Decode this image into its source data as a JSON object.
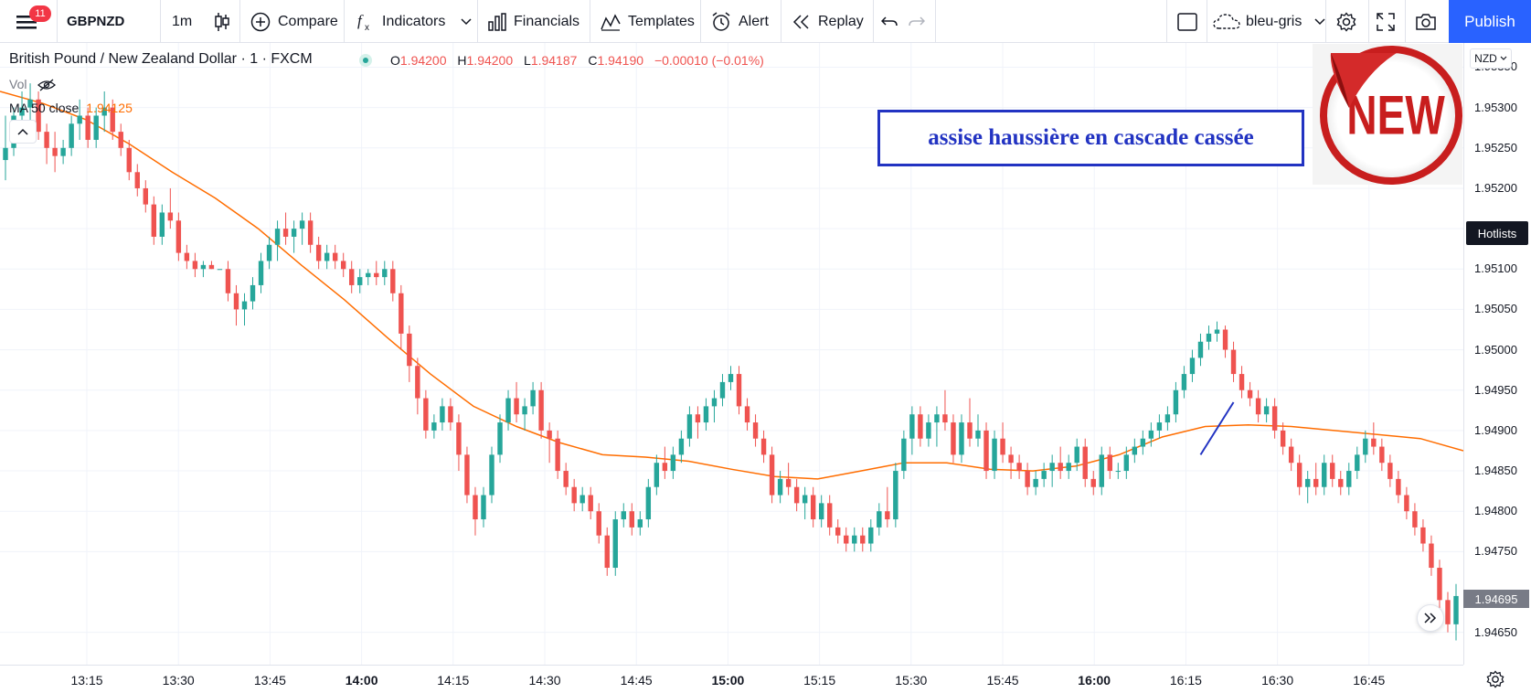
{
  "toolbar": {
    "menu_badge": "11",
    "symbol": "GBPNZD",
    "interval": "1m",
    "compare": "Compare",
    "indicators": "Indicators",
    "financials": "Financials",
    "templates": "Templates",
    "alert": "Alert",
    "replay": "Replay",
    "layout_name": "bleu-gris",
    "publish": "Publish"
  },
  "legend": {
    "title": "British Pound / New Zealand Dollar · 1 · FXCM",
    "o_key": "O",
    "o_val": "1.94200",
    "h_key": "H",
    "h_val": "1.94200",
    "l_key": "L",
    "l_val": "1.94187",
    "c_key": "C",
    "c_val": "1.94190",
    "change": "−0.00010 (−0.01%)",
    "vol": "Vol",
    "ma_label": "MA 50 close",
    "ma_value": "1.94125"
  },
  "annotation": "assise haussière en cascade cassée",
  "sticker_text": "NEW",
  "price_axis": {
    "currency": "NZD",
    "hotlists": "Hotlists",
    "last_price": "1.94695",
    "ticks": [
      "1.95350",
      "1.95300",
      "1.95250",
      "1.95200",
      "1.95150",
      "1.95100",
      "1.95050",
      "1.95000",
      "1.94950",
      "1.94900",
      "1.94850",
      "1.94800",
      "1.94750",
      "1.94650"
    ]
  },
  "colors": {
    "up": "#26a69a",
    "down": "#ef5350",
    "ma": "#ff6d00",
    "annotation": "#2233c2",
    "accent": "#2962ff"
  },
  "chart_data": {
    "type": "candlestick",
    "symbol": "GBPNZD",
    "interval": "1",
    "ylim": [
      1.9461,
      1.9538
    ],
    "time_ticks": [
      "13:15",
      "13:30",
      "13:45",
      "14:00",
      "14:15",
      "14:30",
      "14:45",
      "15:00",
      "15:15",
      "15:30",
      "15:45",
      "16:00",
      "16:15",
      "16:30",
      "16:45"
    ],
    "major_time_ticks": [
      "14:00",
      "15:00",
      "16:00"
    ],
    "candles": [
      [
        1.95235,
        1.9529,
        1.9521,
        1.9525
      ],
      [
        1.9525,
        1.953,
        1.9524,
        1.9529
      ],
      [
        1.9529,
        1.9532,
        1.9527,
        1.953
      ],
      [
        1.953,
        1.9533,
        1.9528,
        1.9531
      ],
      [
        1.9531,
        1.9532,
        1.9526,
        1.9527
      ],
      [
        1.9527,
        1.9528,
        1.9523,
        1.9525
      ],
      [
        1.9525,
        1.9527,
        1.9522,
        1.9524
      ],
      [
        1.9524,
        1.9526,
        1.9523,
        1.9525
      ],
      [
        1.9525,
        1.9529,
        1.9524,
        1.9528
      ],
      [
        1.9528,
        1.9531,
        1.9526,
        1.9529
      ],
      [
        1.9529,
        1.953,
        1.9525,
        1.9526
      ],
      [
        1.9526,
        1.953,
        1.9525,
        1.9529
      ],
      [
        1.9529,
        1.9532,
        1.9527,
        1.953
      ],
      [
        1.953,
        1.9531,
        1.9526,
        1.9527
      ],
      [
        1.9527,
        1.9528,
        1.9524,
        1.9525
      ],
      [
        1.9525,
        1.9526,
        1.9521,
        1.9522
      ],
      [
        1.9522,
        1.9523,
        1.9519,
        1.952
      ],
      [
        1.952,
        1.9521,
        1.9517,
        1.9518
      ],
      [
        1.9518,
        1.9519,
        1.9513,
        1.9514
      ],
      [
        1.9514,
        1.9518,
        1.9513,
        1.9517
      ],
      [
        1.9517,
        1.952,
        1.9515,
        1.9516
      ],
      [
        1.9516,
        1.9517,
        1.9511,
        1.9512
      ],
      [
        1.9512,
        1.9513,
        1.951,
        1.9511
      ],
      [
        1.9511,
        1.9512,
        1.9509,
        1.951
      ],
      [
        1.951,
        1.9511,
        1.9509,
        1.95105
      ],
      [
        1.95105,
        1.9511,
        1.951,
        1.951
      ],
      [
        1.951,
        1.951,
        1.951,
        1.951
      ],
      [
        1.951,
        1.9511,
        1.9506,
        1.9507
      ],
      [
        1.9507,
        1.9508,
        1.9503,
        1.9505
      ],
      [
        1.9505,
        1.9507,
        1.9503,
        1.9506
      ],
      [
        1.9506,
        1.9509,
        1.9505,
        1.9508
      ],
      [
        1.9508,
        1.9512,
        1.9507,
        1.9511
      ],
      [
        1.9511,
        1.9514,
        1.951,
        1.9513
      ],
      [
        1.9513,
        1.9516,
        1.9511,
        1.9515
      ],
      [
        1.9515,
        1.9517,
        1.9513,
        1.9514
      ],
      [
        1.9514,
        1.9516,
        1.9512,
        1.9515
      ],
      [
        1.9515,
        1.9517,
        1.9513,
        1.9516
      ],
      [
        1.9516,
        1.9517,
        1.9512,
        1.9513
      ],
      [
        1.9513,
        1.9514,
        1.951,
        1.9511
      ],
      [
        1.9511,
        1.9513,
        1.951,
        1.9512
      ],
      [
        1.9512,
        1.9513,
        1.951,
        1.9511
      ],
      [
        1.9511,
        1.9512,
        1.9509,
        1.951
      ],
      [
        1.951,
        1.9511,
        1.9507,
        1.9508
      ],
      [
        1.9508,
        1.951,
        1.9507,
        1.9509
      ],
      [
        1.9509,
        1.951,
        1.9508,
        1.95095
      ],
      [
        1.95095,
        1.9511,
        1.9508,
        1.9509
      ],
      [
        1.9509,
        1.9511,
        1.9508,
        1.951
      ],
      [
        1.951,
        1.9511,
        1.9506,
        1.9507
      ],
      [
        1.9507,
        1.9508,
        1.95,
        1.9502
      ],
      [
        1.9502,
        1.9503,
        1.9496,
        1.9498
      ],
      [
        1.9498,
        1.9499,
        1.9492,
        1.9494
      ],
      [
        1.9494,
        1.9495,
        1.9489,
        1.949
      ],
      [
        1.949,
        1.9492,
        1.9489,
        1.9491
      ],
      [
        1.9491,
        1.9494,
        1.949,
        1.9493
      ],
      [
        1.9493,
        1.9494,
        1.949,
        1.9491
      ],
      [
        1.9491,
        1.9492,
        1.9485,
        1.9487
      ],
      [
        1.9487,
        1.9488,
        1.9481,
        1.9482
      ],
      [
        1.9482,
        1.9483,
        1.9477,
        1.9479
      ],
      [
        1.9479,
        1.9483,
        1.9478,
        1.9482
      ],
      [
        1.9482,
        1.9488,
        1.9481,
        1.9487
      ],
      [
        1.9487,
        1.9492,
        1.9486,
        1.9491
      ],
      [
        1.9491,
        1.9495,
        1.949,
        1.9494
      ],
      [
        1.9494,
        1.9496,
        1.9491,
        1.9492
      ],
      [
        1.9492,
        1.9494,
        1.949,
        1.9493
      ],
      [
        1.9493,
        1.9496,
        1.9492,
        1.9495
      ],
      [
        1.9495,
        1.9496,
        1.9489,
        1.949
      ],
      [
        1.949,
        1.9491,
        1.9486,
        1.9489
      ],
      [
        1.9489,
        1.949,
        1.9484,
        1.9485
      ],
      [
        1.9485,
        1.9486,
        1.9482,
        1.9483
      ],
      [
        1.9483,
        1.9484,
        1.948,
        1.9481
      ],
      [
        1.9481,
        1.9483,
        1.948,
        1.9482
      ],
      [
        1.9482,
        1.9483,
        1.9479,
        1.948
      ],
      [
        1.948,
        1.9481,
        1.9476,
        1.9477
      ],
      [
        1.9477,
        1.9478,
        1.9472,
        1.9473
      ],
      [
        1.9473,
        1.948,
        1.9472,
        1.9479
      ],
      [
        1.9479,
        1.9481,
        1.9478,
        1.948
      ],
      [
        1.948,
        1.9481,
        1.9477,
        1.9478
      ],
      [
        1.9478,
        1.948,
        1.9477,
        1.9479
      ],
      [
        1.9479,
        1.9484,
        1.9478,
        1.9483
      ],
      [
        1.9483,
        1.9487,
        1.9482,
        1.9486
      ],
      [
        1.9486,
        1.9488,
        1.9484,
        1.9485
      ],
      [
        1.9485,
        1.9488,
        1.9484,
        1.9487
      ],
      [
        1.9487,
        1.949,
        1.9486,
        1.9489
      ],
      [
        1.9489,
        1.9493,
        1.9488,
        1.9492
      ],
      [
        1.9492,
        1.9493,
        1.9489,
        1.9491
      ],
      [
        1.9491,
        1.9494,
        1.949,
        1.9493
      ],
      [
        1.9493,
        1.9495,
        1.9491,
        1.9494
      ],
      [
        1.9494,
        1.9497,
        1.9493,
        1.9496
      ],
      [
        1.9496,
        1.9498,
        1.9495,
        1.9497
      ],
      [
        1.9497,
        1.9498,
        1.9492,
        1.9493
      ],
      [
        1.9493,
        1.9494,
        1.949,
        1.9491
      ],
      [
        1.9491,
        1.9492,
        1.9488,
        1.9489
      ],
      [
        1.9489,
        1.949,
        1.9486,
        1.9487
      ],
      [
        1.9487,
        1.9488,
        1.9481,
        1.9482
      ],
      [
        1.9482,
        1.9485,
        1.9481,
        1.9484
      ],
      [
        1.9484,
        1.9486,
        1.9482,
        1.9483
      ],
      [
        1.9483,
        1.9484,
        1.948,
        1.9481
      ],
      [
        1.9481,
        1.9483,
        1.9479,
        1.9482
      ],
      [
        1.9482,
        1.9483,
        1.9478,
        1.9479
      ],
      [
        1.9479,
        1.9482,
        1.9478,
        1.9481
      ],
      [
        1.9481,
        1.9482,
        1.9477,
        1.9478
      ],
      [
        1.9478,
        1.9479,
        1.9476,
        1.9477
      ],
      [
        1.9477,
        1.9478,
        1.9475,
        1.9476
      ],
      [
        1.9476,
        1.9478,
        1.9475,
        1.9477
      ],
      [
        1.9477,
        1.9478,
        1.9475,
        1.9476
      ],
      [
        1.9476,
        1.9479,
        1.9475,
        1.9478
      ],
      [
        1.9478,
        1.9481,
        1.9477,
        1.948
      ],
      [
        1.948,
        1.9483,
        1.9478,
        1.9479
      ],
      [
        1.9479,
        1.9486,
        1.9478,
        1.9485
      ],
      [
        1.9485,
        1.949,
        1.9484,
        1.9489
      ],
      [
        1.9489,
        1.9493,
        1.9487,
        1.9492
      ],
      [
        1.9492,
        1.9493,
        1.9488,
        1.9489
      ],
      [
        1.9489,
        1.9492,
        1.9488,
        1.9491
      ],
      [
        1.9491,
        1.9493,
        1.9488,
        1.9492
      ],
      [
        1.9492,
        1.9495,
        1.949,
        1.9491
      ],
      [
        1.9491,
        1.9492,
        1.9486,
        1.9487
      ],
      [
        1.9487,
        1.9492,
        1.9486,
        1.9491
      ],
      [
        1.9491,
        1.9494,
        1.9488,
        1.9489
      ],
      [
        1.9489,
        1.9492,
        1.9488,
        1.949
      ],
      [
        1.949,
        1.9491,
        1.9484,
        1.9485
      ],
      [
        1.9485,
        1.949,
        1.9484,
        1.9489
      ],
      [
        1.9489,
        1.9491,
        1.9486,
        1.9487
      ],
      [
        1.9487,
        1.9488,
        1.9484,
        1.9486
      ],
      [
        1.9486,
        1.9487,
        1.9484,
        1.9485
      ],
      [
        1.9485,
        1.9486,
        1.9482,
        1.9483
      ],
      [
        1.9483,
        1.9485,
        1.9482,
        1.9484
      ],
      [
        1.9484,
        1.9486,
        1.9483,
        1.9485
      ],
      [
        1.9485,
        1.9487,
        1.9483,
        1.9486
      ],
      [
        1.9486,
        1.9488,
        1.9484,
        1.9485
      ],
      [
        1.9485,
        1.9487,
        1.9484,
        1.9486
      ],
      [
        1.9486,
        1.9489,
        1.9485,
        1.9488
      ],
      [
        1.9488,
        1.9489,
        1.9483,
        1.9484
      ],
      [
        1.9484,
        1.9485,
        1.9482,
        1.9483
      ],
      [
        1.9483,
        1.9488,
        1.9482,
        1.9487
      ],
      [
        1.9487,
        1.9488,
        1.9484,
        1.9485
      ],
      [
        1.9485,
        1.9486,
        1.9484,
        1.9485
      ],
      [
        1.9485,
        1.9488,
        1.9484,
        1.9487
      ],
      [
        1.9487,
        1.9489,
        1.9486,
        1.9488
      ],
      [
        1.9488,
        1.949,
        1.9487,
        1.9489
      ],
      [
        1.9489,
        1.9491,
        1.9488,
        1.949
      ],
      [
        1.949,
        1.9492,
        1.9489,
        1.9491
      ],
      [
        1.9491,
        1.9493,
        1.949,
        1.9492
      ],
      [
        1.9492,
        1.9496,
        1.9491,
        1.9495
      ],
      [
        1.9495,
        1.9498,
        1.9494,
        1.9497
      ],
      [
        1.9497,
        1.95,
        1.9496,
        1.9499
      ],
      [
        1.9499,
        1.9502,
        1.9498,
        1.9501
      ],
      [
        1.9501,
        1.9503,
        1.95,
        1.9502
      ],
      [
        1.9502,
        1.95035,
        1.9501,
        1.95025
      ],
      [
        1.95025,
        1.9503,
        1.9499,
        1.95
      ],
      [
        1.95,
        1.9501,
        1.9496,
        1.9497
      ],
      [
        1.9497,
        1.9498,
        1.9494,
        1.9495
      ],
      [
        1.9495,
        1.9496,
        1.9493,
        1.9494
      ],
      [
        1.9494,
        1.9495,
        1.9491,
        1.9492
      ],
      [
        1.9492,
        1.9494,
        1.9491,
        1.9493
      ],
      [
        1.9493,
        1.9494,
        1.9489,
        1.949
      ],
      [
        1.949,
        1.9491,
        1.9487,
        1.9488
      ],
      [
        1.9488,
        1.9489,
        1.9485,
        1.9486
      ],
      [
        1.9486,
        1.9487,
        1.9482,
        1.9483
      ],
      [
        1.9483,
        1.9485,
        1.9481,
        1.9484
      ],
      [
        1.9484,
        1.9486,
        1.9482,
        1.9483
      ],
      [
        1.9483,
        1.9487,
        1.9482,
        1.9486
      ],
      [
        1.9486,
        1.9487,
        1.9483,
        1.9484
      ],
      [
        1.9484,
        1.9485,
        1.9482,
        1.9483
      ],
      [
        1.9483,
        1.9486,
        1.9482,
        1.9485
      ],
      [
        1.9485,
        1.9488,
        1.9484,
        1.9487
      ],
      [
        1.9487,
        1.949,
        1.9486,
        1.9489
      ],
      [
        1.9489,
        1.9491,
        1.9487,
        1.9488
      ],
      [
        1.9488,
        1.9489,
        1.9485,
        1.9486
      ],
      [
        1.9486,
        1.9487,
        1.9483,
        1.9484
      ],
      [
        1.9484,
        1.9485,
        1.9481,
        1.9482
      ],
      [
        1.9482,
        1.9483,
        1.9479,
        1.948
      ],
      [
        1.948,
        1.9481,
        1.9477,
        1.9478
      ],
      [
        1.9478,
        1.9479,
        1.9475,
        1.9476
      ],
      [
        1.9476,
        1.9477,
        1.9472,
        1.9473
      ],
      [
        1.9473,
        1.9474,
        1.9468,
        1.9469
      ],
      [
        1.9469,
        1.947,
        1.9465,
        1.9466
      ],
      [
        1.9466,
        1.9471,
        1.9464,
        1.94695
      ]
    ],
    "ma50": [
      1.9532,
      1.95305,
      1.95285,
      1.95255,
      1.9522,
      1.95188,
      1.9515,
      1.95105,
      1.95062,
      1.95015,
      1.9497,
      1.9493,
      1.94905,
      1.94885,
      1.9487,
      1.94867,
      1.94862,
      1.94852,
      1.94843,
      1.9484,
      1.9485,
      1.9486,
      1.9486,
      1.94852,
      1.9485,
      1.94856,
      1.9487,
      1.94892,
      1.94905,
      1.94907,
      1.94905,
      1.949,
      1.94895,
      1.9489,
      1.94875
    ],
    "annotation_line": {
      "x_index": [
        145,
        149
      ],
      "y": [
        1.9487,
        1.94935
      ]
    }
  }
}
